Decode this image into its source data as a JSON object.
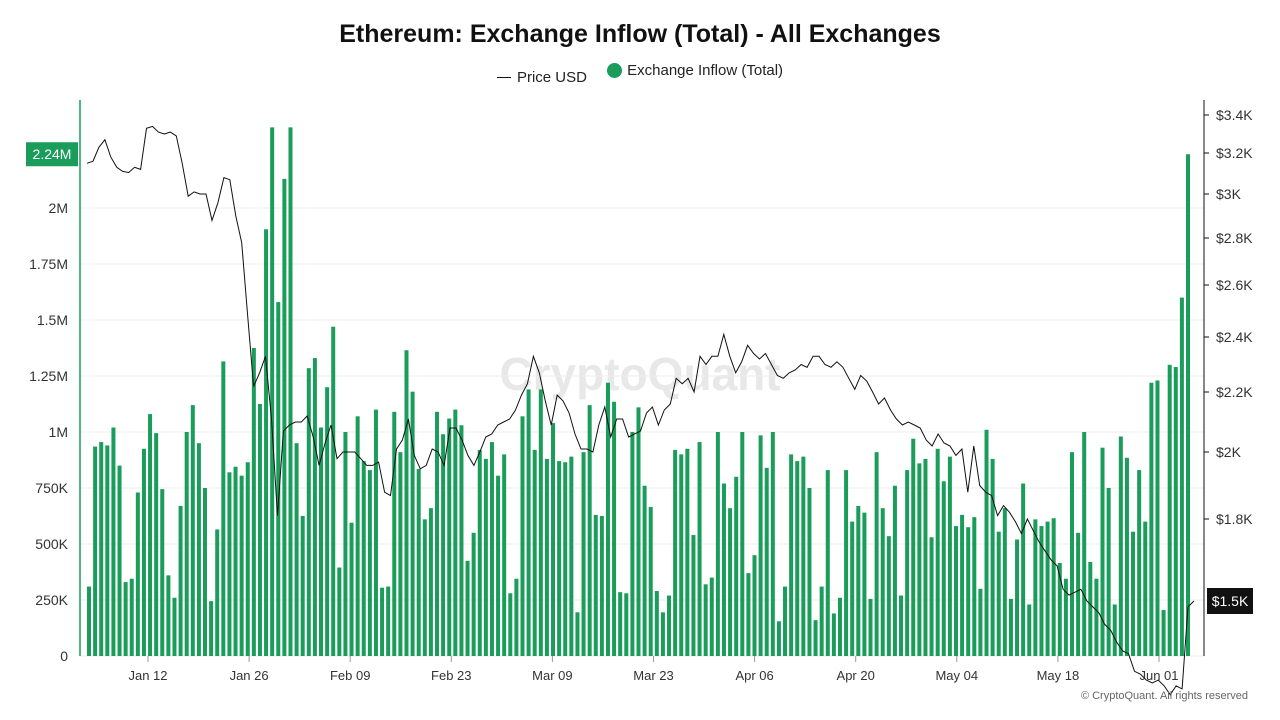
{
  "title": "Ethereum: Exchange Inflow (Total) - All Exchanges",
  "legend": {
    "price_label": "Price USD",
    "inflow_label": "Exchange Inflow (Total)"
  },
  "watermark": "CryptoQuant",
  "footer": "© CryptoQuant. All rights reserved",
  "colors": {
    "inflow": "#1a9c5b",
    "price": "#111111",
    "grid": "#eeeeee"
  },
  "chart_data": {
    "type": "bar",
    "title": "Ethereum: Exchange Inflow (Total) - All Exchanges",
    "x_tick_labels": [
      "Jan 12",
      "Jan 26",
      "Feb 09",
      "Feb 23",
      "Mar 09",
      "Mar 23",
      "Apr 06",
      "Apr 20",
      "May 04",
      "May 18",
      "Jun 01"
    ],
    "y_left": {
      "ticks": [
        "0",
        "250K",
        "500K",
        "750K",
        "1M",
        "1.25M",
        "1.5M",
        "1.75M",
        "2M"
      ],
      "ylim": [
        0,
        2400000
      ],
      "highlight_label": "2.24M",
      "highlight_value": 2240000
    },
    "y_right": {
      "ticks": [
        "$1.8K",
        "$2K",
        "$2.2K",
        "$2.4K",
        "$2.6K",
        "$2.8K",
        "$3K",
        "$3.2K",
        "$3.4K"
      ],
      "highlight_label": "$1.5K",
      "highlight_value": 1520
    },
    "grid": true,
    "legend_position": "top-center",
    "series": [
      {
        "name": "Exchange Inflow (Total)",
        "kind": "bar",
        "axis": "left",
        "values": [
          310000,
          935000,
          955000,
          940000,
          1020000,
          850000,
          330000,
          345000,
          730000,
          925000,
          1080000,
          995000,
          745000,
          360000,
          260000,
          670000,
          1000000,
          1120000,
          950000,
          750000,
          245000,
          565000,
          1315000,
          820000,
          845000,
          805000,
          865000,
          1375000,
          1125000,
          1905000,
          2360000,
          1580000,
          2130000,
          2360000,
          950000,
          625000,
          1285000,
          1330000,
          1020000,
          1200000,
          1470000,
          395000,
          1000000,
          595000,
          1070000,
          870000,
          830000,
          1100000,
          305000,
          310000,
          1090000,
          910000,
          1365000,
          1180000,
          835000,
          610000,
          660000,
          1090000,
          990000,
          1060000,
          1100000,
          1030000,
          425000,
          550000,
          920000,
          880000,
          955000,
          805000,
          900000,
          280000,
          345000,
          1070000,
          1190000,
          920000,
          1190000,
          880000,
          1040000,
          870000,
          865000,
          890000,
          195000,
          910000,
          1120000,
          630000,
          625000,
          1220000,
          1135000,
          285000,
          280000,
          1000000,
          1110000,
          760000,
          665000,
          290000,
          195000,
          270000,
          920000,
          900000,
          925000,
          540000,
          955000,
          320000,
          350000,
          1000000,
          770000,
          660000,
          800000,
          1000000,
          370000,
          450000,
          985000,
          840000,
          1000000,
          155000,
          310000,
          900000,
          870000,
          890000,
          750000,
          160000,
          310000,
          830000,
          190000,
          260000,
          830000,
          600000,
          670000,
          640000,
          255000,
          910000,
          660000,
          535000,
          760000,
          270000,
          830000,
          970000,
          860000,
          880000,
          530000,
          925000,
          780000,
          890000,
          580000,
          630000,
          575000,
          620000,
          300000,
          1010000,
          880000,
          555000,
          660000,
          255000,
          520000,
          770000,
          230000,
          610000,
          580000,
          600000,
          615000,
          415000,
          345000,
          910000,
          550000,
          1000000,
          420000,
          345000,
          930000,
          750000,
          230000,
          980000,
          885000,
          555000,
          830000,
          600000,
          1220000,
          1230000,
          205000,
          1300000,
          1290000,
          1600000,
          2240000
        ],
        "color": "#1a9c5b"
      },
      {
        "name": "Price USD",
        "kind": "line",
        "axis": "right",
        "values": [
          3150,
          3160,
          3230,
          3270,
          3180,
          3130,
          3110,
          3105,
          3130,
          3120,
          3330,
          3340,
          3310,
          3300,
          3310,
          3290,
          3150,
          2990,
          3010,
          3000,
          3000,
          2880,
          2960,
          3080,
          3070,
          2900,
          2780,
          2480,
          2220,
          2270,
          2330,
          2110,
          1810,
          2070,
          2090,
          2100,
          2100,
          2120,
          2050,
          1960,
          2030,
          2090,
          1980,
          2000,
          2000,
          2000,
          1980,
          1960,
          1960,
          1970,
          1880,
          1870,
          2010,
          2040,
          2110,
          1990,
          1950,
          1960,
          2010,
          2000,
          1960,
          2080,
          2080,
          2040,
          1990,
          1960,
          2000,
          2050,
          2060,
          2090,
          2100,
          2110,
          2140,
          2190,
          2230,
          2330,
          2270,
          2170,
          2090,
          2190,
          2170,
          2130,
          2060,
          2010,
          2010,
          2000,
          2090,
          2150,
          2050,
          2110,
          2110,
          2050,
          2060,
          2070,
          2130,
          2150,
          2090,
          2140,
          2160,
          2250,
          2230,
          2250,
          2200,
          2330,
          2300,
          2330,
          2330,
          2410,
          2330,
          2270,
          2310,
          2370,
          2340,
          2320,
          2340,
          2300,
          2260,
          2250,
          2270,
          2280,
          2300,
          2290,
          2330,
          2330,
          2300,
          2290,
          2310,
          2290,
          2250,
          2210,
          2260,
          2240,
          2200,
          2160,
          2180,
          2140,
          2110,
          2090,
          2100,
          2090,
          2080,
          2040,
          2020,
          2060,
          2030,
          2020,
          1990,
          2010,
          1880,
          2020,
          1900,
          1880,
          1870,
          1810,
          1840,
          1820,
          1790,
          1750,
          1800,
          1760,
          1720,
          1690,
          1660,
          1640,
          1560,
          1540,
          1550,
          1560,
          1520,
          1500,
          1480,
          1440,
          1420,
          1380,
          1350,
          1340,
          1280,
          1270,
          1250,
          1240,
          1250,
          1230,
          1200,
          1230,
          1220,
          1500,
          1520
        ]
      }
    ]
  }
}
